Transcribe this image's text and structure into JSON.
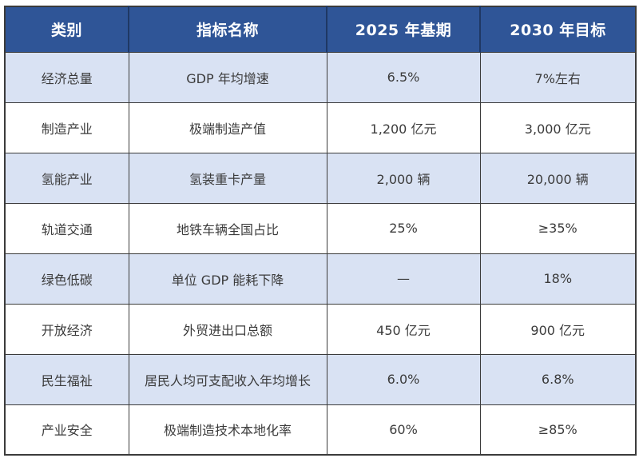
{
  "colors": {
    "header_bg": "#2F5597",
    "header_divider": "#1F3864",
    "header_text": "#FFFFFF",
    "alt_row_bg": "#D9E2F3",
    "cell_text": "#3B3B3B",
    "border": "#3B3B3B"
  },
  "table": {
    "headers": [
      "类别",
      "指标名称",
      "2025 年基期",
      "2030 年目标"
    ],
    "rows": [
      {
        "cells": [
          "经济总量",
          "GDP 年均增速",
          "6.5%",
          "7%左右"
        ]
      },
      {
        "cells": [
          "制造产业",
          "极端制造产值",
          "1,200 亿元",
          "3,000 亿元"
        ]
      },
      {
        "cells": [
          "氢能产业",
          "氢装重卡产量",
          "2,000 辆",
          "20,000 辆"
        ]
      },
      {
        "cells": [
          "轨道交通",
          "地铁车辆全国占比",
          "25%",
          "≥35%"
        ]
      },
      {
        "cells": [
          "绿色低碳",
          "单位 GDP 能耗下降",
          "—",
          "18%"
        ]
      },
      {
        "cells": [
          "开放经济",
          "外贸进出口总额",
          "450 亿元",
          "900 亿元"
        ]
      },
      {
        "cells": [
          "民生福祉",
          "居民人均可支配收入年均增长",
          "6.0%",
          "6.8%"
        ]
      },
      {
        "cells": [
          "产业安全",
          "极端制造技术本地化率",
          "60%",
          "≥85%"
        ]
      }
    ]
  }
}
